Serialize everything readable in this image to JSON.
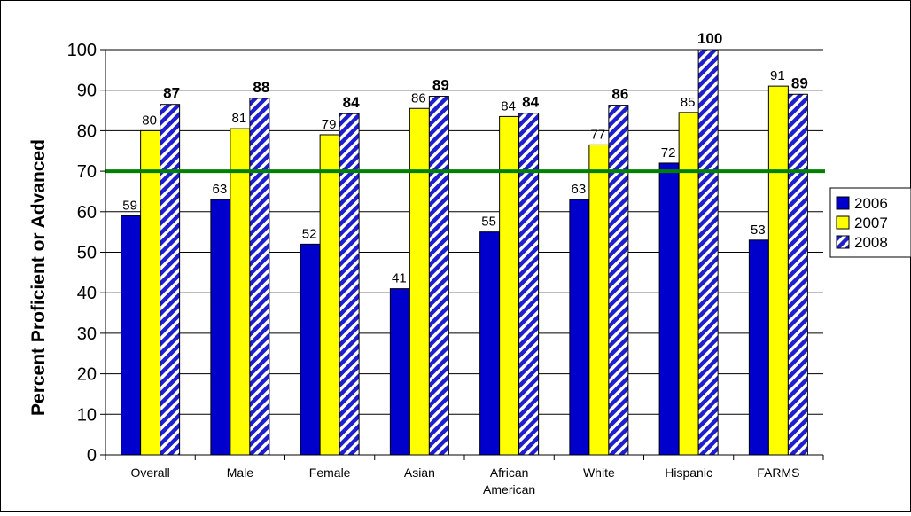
{
  "chart_data": {
    "type": "bar",
    "categories": [
      "Overall",
      "Male",
      "Female",
      "Asian",
      "African American",
      "White",
      "Hispanic",
      "FARMS"
    ],
    "category_lines": [
      [
        "Overall"
      ],
      [
        "Male"
      ],
      [
        "Female"
      ],
      [
        "Asian"
      ],
      [
        "African",
        "American"
      ],
      [
        "White"
      ],
      [
        "Hispanic"
      ],
      [
        "FARMS"
      ]
    ],
    "series": [
      {
        "name": "2006",
        "values": [
          59,
          63,
          52,
          41,
          55,
          63,
          72,
          53
        ],
        "labels": [
          "59",
          "63",
          "52",
          "41",
          "55",
          "63",
          "72",
          "53"
        ],
        "color": "#0000CC",
        "pattern": "solid",
        "label_bold": false
      },
      {
        "name": "2007",
        "values": [
          80,
          80.5,
          79,
          85.5,
          83.5,
          76.5,
          84.5,
          91
        ],
        "labels": [
          "80",
          "81",
          "79",
          "86",
          "84",
          "77",
          "85",
          "91"
        ],
        "color": "#FFFF00",
        "pattern": "solid",
        "label_bold": false
      },
      {
        "name": "2008",
        "values": [
          86.5,
          88,
          84.2,
          88.5,
          84.3,
          86.3,
          100,
          89
        ],
        "labels": [
          "87",
          "88",
          "84",
          "89",
          "84",
          "86",
          "100",
          "89"
        ],
        "color": "#1E1ECC",
        "pattern": "diagonal-stripe",
        "label_bold": true
      }
    ],
    "ylabel": "Percent Proficient or Advanced",
    "xlabel": "",
    "ylim": [
      0,
      100
    ],
    "yticks": [
      0,
      10,
      20,
      30,
      40,
      50,
      60,
      70,
      80,
      90,
      100
    ],
    "reference_line": {
      "value": 70,
      "color": "#008000"
    },
    "grid": true,
    "legend": "right"
  }
}
